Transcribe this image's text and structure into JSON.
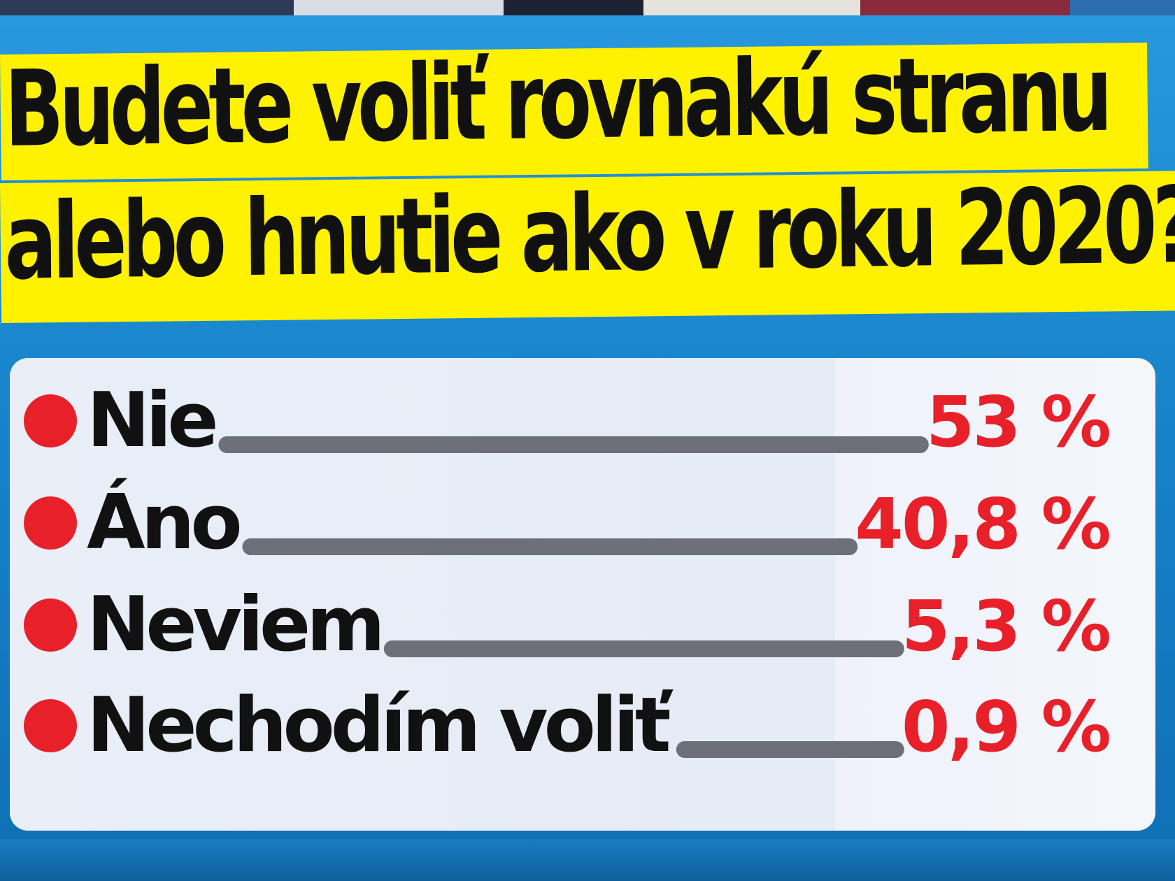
{
  "title_lines": [
    "Budete voliť rovnakú stranu",
    "alebo hnutie ako v roku 2020?"
  ],
  "colors": {
    "background": "#1a86cc",
    "title_highlight": "#fff200",
    "title_text": "#111111",
    "bullet": "#e8202a",
    "value_text": "#e8202a",
    "label_text": "#111111",
    "leader_line": "#6d7078",
    "panel": "#e9eef7"
  },
  "chart_data": {
    "type": "table",
    "title": "Budete voliť rovnakú stranu alebo hnutie ako v roku 2020?",
    "unit": "%",
    "categories": [
      "Nie",
      "Áno",
      "Neviem",
      "Nechodím voliť"
    ],
    "values": [
      53,
      40.8,
      5.3,
      0.9
    ],
    "value_labels": [
      "53 %",
      "40,8 %",
      "5,3 %",
      "0,9 %"
    ]
  }
}
